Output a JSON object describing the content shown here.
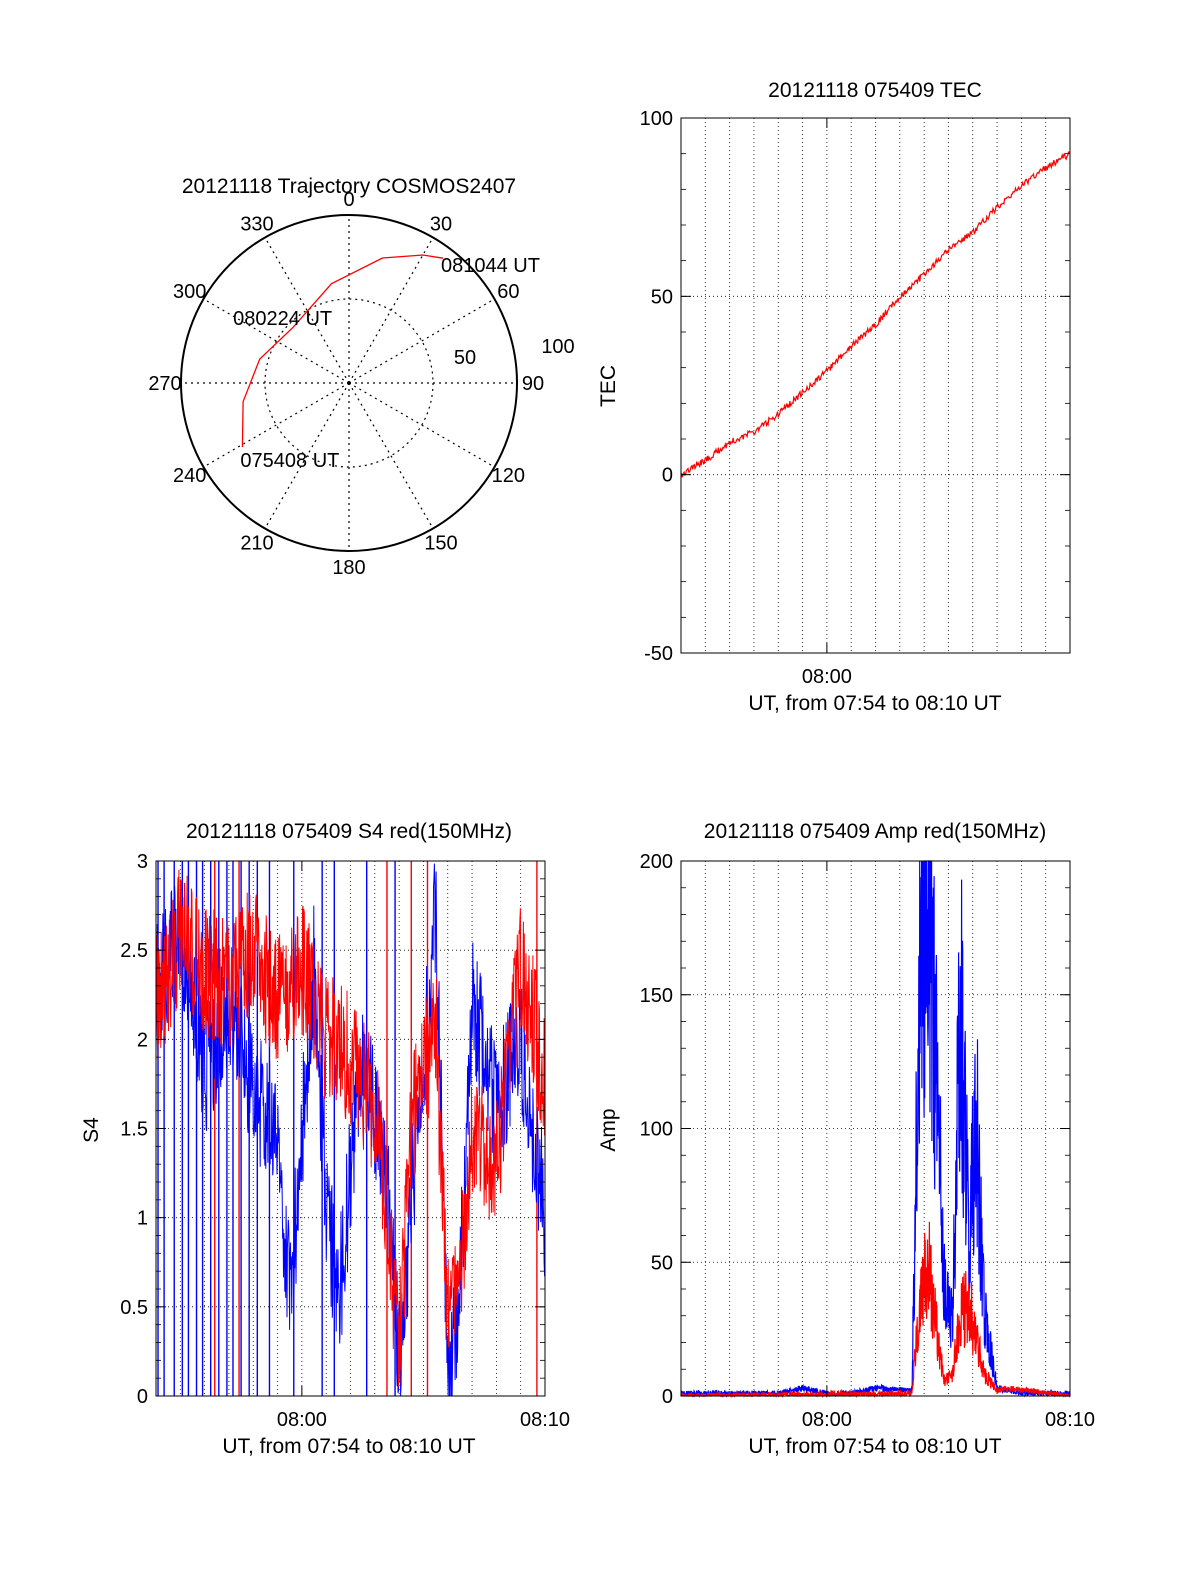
{
  "colors": {
    "red": "#ff0000",
    "blue": "#0000ff",
    "axis": "#000000",
    "grid": "#000000"
  },
  "chart_data": [
    {
      "id": "trajectory",
      "type": "polar",
      "title": "20121118 Trajectory COSMOS2407",
      "azimuth_labels": [
        "0",
        "30",
        "60",
        "90",
        "120",
        "150",
        "180",
        "210",
        "240",
        "270",
        "300",
        "330"
      ],
      "radial_labels": [
        "50",
        "100"
      ],
      "rlim": [
        0,
        100
      ],
      "grid": true,
      "series": [
        {
          "color": "red",
          "points": [
            {
              "az": 239,
              "r": 74,
              "label": "075408 UT"
            },
            {
              "az": 260,
              "r": 64
            },
            {
              "az": 285,
              "r": 55
            },
            {
              "az": 315,
              "r": 47,
              "label": "080224 UT"
            },
            {
              "az": 350,
              "r": 60
            },
            {
              "az": 15,
              "r": 77
            },
            {
              "az": 30,
              "r": 88
            },
            {
              "az": 37,
              "r": 93,
              "label": "081044 UT"
            }
          ]
        }
      ]
    },
    {
      "id": "tec",
      "type": "line",
      "title": "20121118 075409 TEC",
      "xlabel": "UT, from 07:54 to 08:10 UT",
      "ylabel": "TEC",
      "xlim": [
        "07:54",
        "08:10"
      ],
      "ylim": [
        -50,
        100
      ],
      "yticks": [
        -50,
        0,
        50,
        100
      ],
      "xticks": [
        {
          "value": "08:00",
          "label": "08:00"
        }
      ],
      "grid": true,
      "series": [
        {
          "color": "red",
          "x": [
            "07:54:00",
            "07:55:00",
            "07:56:00",
            "07:57:00",
            "07:58:00",
            "07:59:00",
            "08:00:00",
            "08:01:00",
            "08:02:00",
            "08:03:00",
            "08:04:00",
            "08:05:00",
            "08:06:00",
            "08:07:00",
            "08:08:00",
            "08:09:00",
            "08:10:00"
          ],
          "y": [
            0,
            4,
            9,
            12,
            17,
            23,
            29,
            36,
            42,
            50,
            56,
            63,
            68,
            75,
            81,
            86,
            90
          ]
        }
      ]
    },
    {
      "id": "s4",
      "type": "line",
      "title": "20121118 075409 S4 red(150MHz)",
      "xlabel": "UT, from 07:54 to 08:10 UT",
      "ylabel": "S4",
      "xlim": [
        "07:54",
        "08:10"
      ],
      "ylim": [
        0,
        3
      ],
      "yticks": [
        0,
        0.5,
        1,
        1.5,
        2,
        2.5,
        3
      ],
      "xticks": [
        {
          "value": "08:00",
          "label": "08:00"
        },
        {
          "value": "08:10",
          "label": "08:10"
        }
      ],
      "grid": true,
      "series": [
        {
          "color": "blue",
          "x": [
            "07:54:00",
            "07:55:00",
            "07:56:00",
            "07:57:00",
            "07:58:00",
            "07:59:00",
            "07:59:30",
            "08:00:30",
            "08:01:00",
            "08:01:30",
            "08:02:30",
            "08:03:30",
            "08:04:00",
            "08:04:30",
            "08:05:30",
            "08:06:00",
            "08:06:30",
            "08:07:00",
            "08:08:00",
            "08:09:00",
            "08:10:00"
          ],
          "y": [
            2.3,
            2.6,
            1.8,
            2.2,
            1.7,
            1.5,
            0.5,
            2.4,
            1.1,
            0.5,
            2.0,
            1.2,
            0.15,
            1.1,
            2.7,
            0.15,
            0.6,
            2.2,
            1.6,
            2.0,
            1.0
          ]
        },
        {
          "color": "red",
          "x": [
            "07:54:00",
            "07:55:00",
            "07:56:00",
            "07:57:00",
            "07:58:00",
            "07:59:00",
            "08:00:00",
            "08:01:00",
            "08:02:00",
            "08:03:00",
            "08:03:30",
            "08:04:00",
            "08:04:30",
            "08:05:30",
            "08:06:00",
            "08:06:30",
            "08:07:00",
            "08:08:00",
            "08:09:00",
            "08:10:00"
          ],
          "y": [
            2.2,
            2.6,
            2.4,
            2.3,
            2.5,
            2.2,
            2.4,
            2.0,
            1.9,
            1.6,
            1.0,
            0.25,
            1.5,
            2.1,
            0.4,
            0.6,
            1.5,
            1.3,
            2.4,
            1.8
          ]
        }
      ],
      "vertical_spikes": {
        "blue": [
          "07:54:05",
          "07:54:20",
          "07:54:45",
          "07:55:05",
          "07:55:20",
          "07:55:40",
          "07:55:55",
          "07:56:15",
          "07:56:35",
          "07:56:55",
          "07:57:10",
          "07:57:30",
          "07:57:50",
          "07:58:10",
          "07:58:40",
          "07:59:40",
          "08:00:50",
          "08:01:20",
          "08:02:40",
          "08:03:50"
        ],
        "red": [
          "07:56:25",
          "07:57:25",
          "08:03:30",
          "08:04:30",
          "08:05:10",
          "08:09:40"
        ]
      }
    },
    {
      "id": "amp",
      "type": "line",
      "title": "20121118 075409 Amp red(150MHz)",
      "xlabel": "UT, from 07:54 to 08:10 UT",
      "ylabel": "Amp",
      "xlim": [
        "07:54",
        "08:10"
      ],
      "ylim": [
        0,
        200
      ],
      "yticks": [
        0,
        50,
        100,
        150,
        200
      ],
      "xticks": [
        {
          "value": "08:00",
          "label": "08:00"
        },
        {
          "value": "08:10",
          "label": "08:10"
        }
      ],
      "grid": true,
      "series": [
        {
          "color": "blue",
          "x": [
            "07:54:00",
            "07:58:00",
            "07:59:00",
            "08:00:00",
            "08:01:00",
            "08:02:00",
            "08:03:30",
            "08:03:50",
            "08:04:10",
            "08:04:30",
            "08:04:50",
            "08:05:10",
            "08:05:30",
            "08:05:50",
            "08:06:10",
            "08:06:30",
            "08:07:00",
            "08:08:00",
            "08:09:00",
            "08:10:00"
          ],
          "y": [
            1,
            1,
            3,
            1,
            1,
            3,
            2,
            180,
            195,
            120,
            40,
            30,
            148,
            60,
            98,
            30,
            3,
            1,
            1,
            1
          ]
        },
        {
          "color": "red",
          "x": [
            "07:54:00",
            "08:03:30",
            "08:03:50",
            "08:04:10",
            "08:04:30",
            "08:04:50",
            "08:05:10",
            "08:05:30",
            "08:05:50",
            "08:06:10",
            "08:06:30",
            "08:07:00",
            "08:07:30",
            "08:10:00"
          ],
          "y": [
            0,
            1,
            35,
            50,
            25,
            5,
            8,
            30,
            35,
            20,
            8,
            2,
            3,
            0
          ]
        }
      ]
    }
  ]
}
